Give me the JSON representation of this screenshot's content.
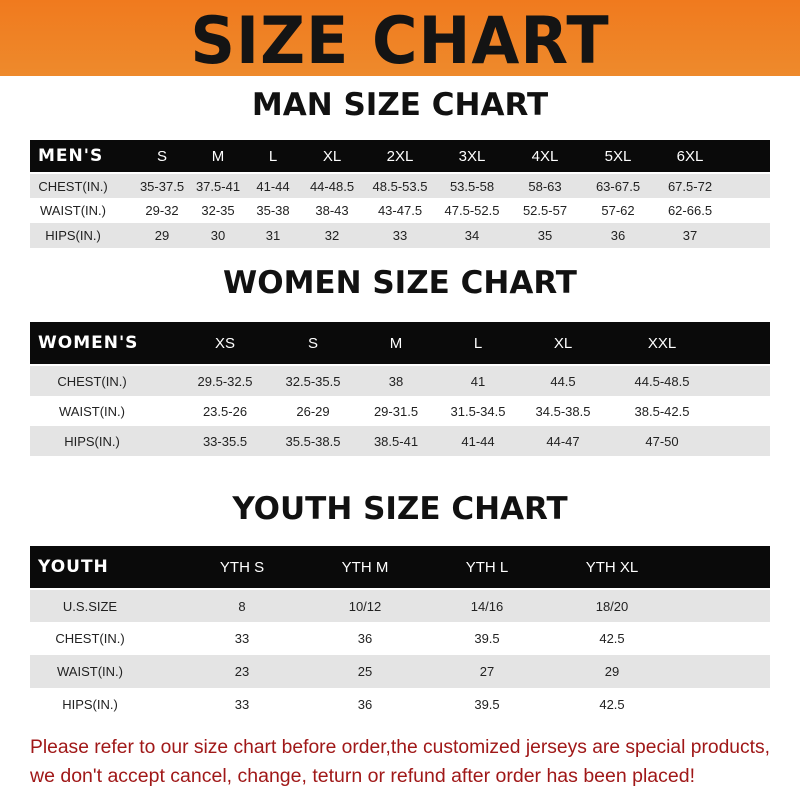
{
  "banner": {
    "title": "SIZE CHART"
  },
  "men": {
    "title": "MAN SIZE CHART",
    "header": [
      "MEN'S",
      "S",
      "M",
      "L",
      "XL",
      "2XL",
      "3XL",
      "4XL",
      "5XL",
      "6XL"
    ],
    "rows": [
      [
        "CHEST(IN.)",
        "35-37.5",
        "37.5-41",
        "41-44",
        "44-48.5",
        "48.5-53.5",
        "53.5-58",
        "58-63",
        "63-67.5",
        "67.5-72"
      ],
      [
        "WAIST(IN.)",
        "29-32",
        "32-35",
        "35-38",
        "38-43",
        "43-47.5",
        "47.5-52.5",
        "52.5-57",
        "57-62",
        "62-66.5"
      ],
      [
        "HIPS(IN.)",
        "29",
        "30",
        "31",
        "32",
        "33",
        "34",
        "35",
        "36",
        "37"
      ]
    ]
  },
  "women": {
    "title": "WOMEN SIZE CHART",
    "header": [
      "WOMEN'S",
      "XS",
      "S",
      "M",
      "L",
      "XL",
      "XXL"
    ],
    "rows": [
      [
        "CHEST(IN.)",
        "29.5-32.5",
        "32.5-35.5",
        "38",
        "41",
        "44.5",
        "44.5-48.5"
      ],
      [
        "WAIST(IN.)",
        "23.5-26",
        "26-29",
        "29-31.5",
        "31.5-34.5",
        "34.5-38.5",
        "38.5-42.5"
      ],
      [
        "HIPS(IN.)",
        "33-35.5",
        "35.5-38.5",
        "38.5-41",
        "41-44",
        "44-47",
        "47-50"
      ]
    ]
  },
  "youth": {
    "title": "YOUTH SIZE CHART",
    "header": [
      "YOUTH",
      "YTH S",
      "YTH M",
      "YTH L",
      "YTH XL"
    ],
    "rows": [
      [
        "U.S.SIZE",
        "8",
        "10/12",
        "14/16",
        "18/20"
      ],
      [
        "CHEST(IN.)",
        "33",
        "36",
        "39.5",
        "42.5"
      ],
      [
        "WAIST(IN.)",
        "23",
        "25",
        "27",
        "29"
      ],
      [
        "HIPS(IN.)",
        "33",
        "36",
        "39.5",
        "42.5"
      ]
    ]
  },
  "notice": {
    "line1": "Please refer to our size chart before order,the customized jerseys are special products,",
    "line2": "we don't accept cancel, change, teturn or refund after order has been placed!"
  },
  "colors": {
    "banner": "#f07a1e",
    "header_row": "#0a0a0a",
    "stripe": "#e4e4e4",
    "notice": "#a01818"
  }
}
